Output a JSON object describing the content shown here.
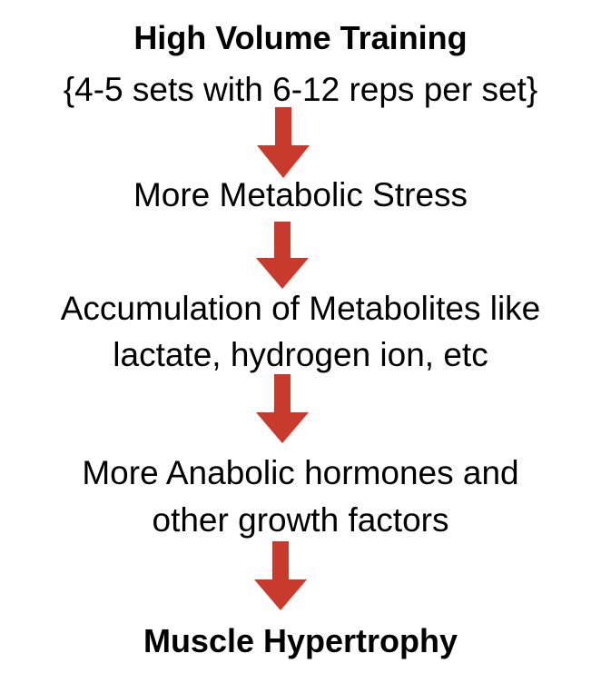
{
  "title": "High Volume Training",
  "subtitle": "{4-5 sets with 6-12 reps per set}",
  "steps": [
    {
      "lines": [
        "More Metabolic Stress"
      ]
    },
    {
      "lines": [
        "Accumulation of Metabolites like",
        "lactate, hydrogen ion, etc"
      ]
    },
    {
      "lines": [
        "More Anabolic hormones and",
        "other growth factors"
      ]
    }
  ],
  "outcome": "Muscle Hypertrophy",
  "colors": {
    "arrow": "#c83a2b",
    "text": "#000000"
  },
  "icons": [
    "arrow-down-icon"
  ]
}
